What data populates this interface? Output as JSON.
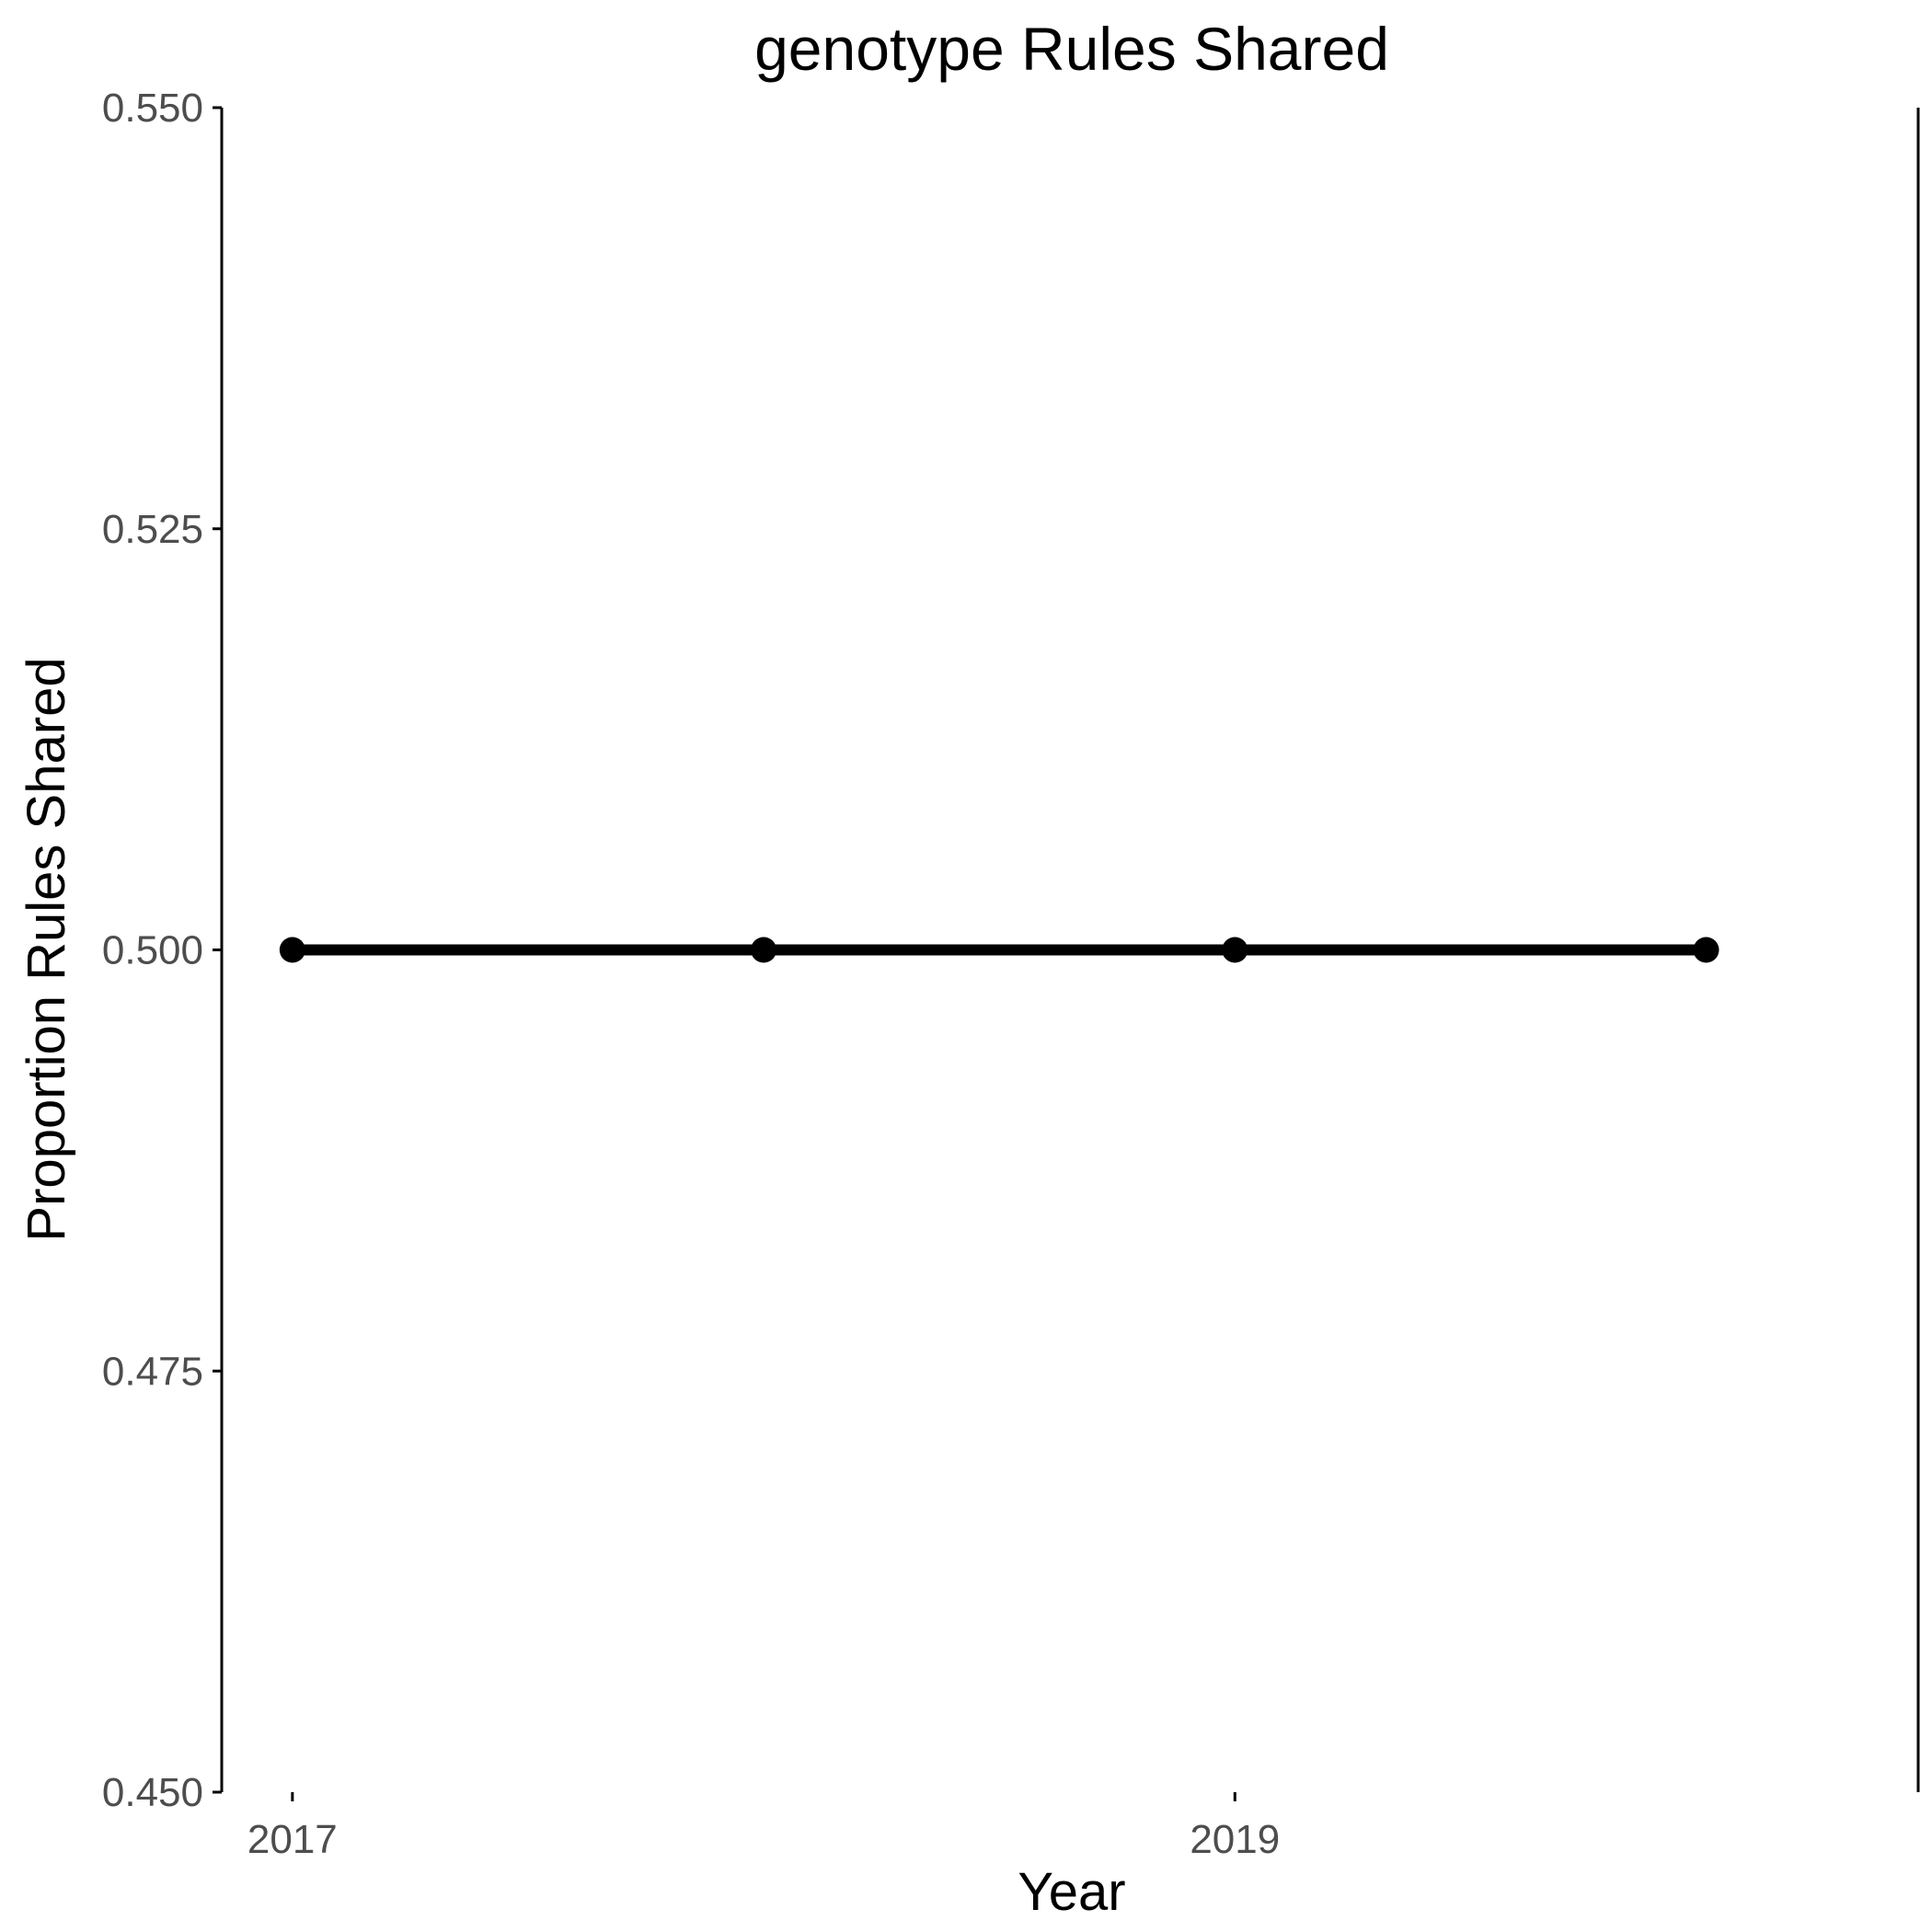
{
  "chart_data": {
    "type": "line",
    "title": "genotype Rules Shared",
    "xlabel": "Year",
    "ylabel": "Proportion Rules Shared",
    "x": [
      2017,
      2018,
      2019,
      2020
    ],
    "xlim": [
      2016.85,
      2020.45
    ],
    "xticks": [
      2017,
      2019
    ],
    "xtick_labels": [
      "2017",
      "2019"
    ],
    "ylim": [
      0.45,
      0.55
    ],
    "yticks": [
      0.45,
      0.475,
      0.5,
      0.525,
      0.55
    ],
    "ytick_labels": [
      "0.450",
      "0.475",
      "0.500",
      "0.525",
      "0.550"
    ],
    "series": [
      {
        "values": [
          0.5,
          0.5,
          0.5,
          0.5
        ],
        "color": "#000000"
      }
    ],
    "grid": false,
    "legend": "none"
  }
}
